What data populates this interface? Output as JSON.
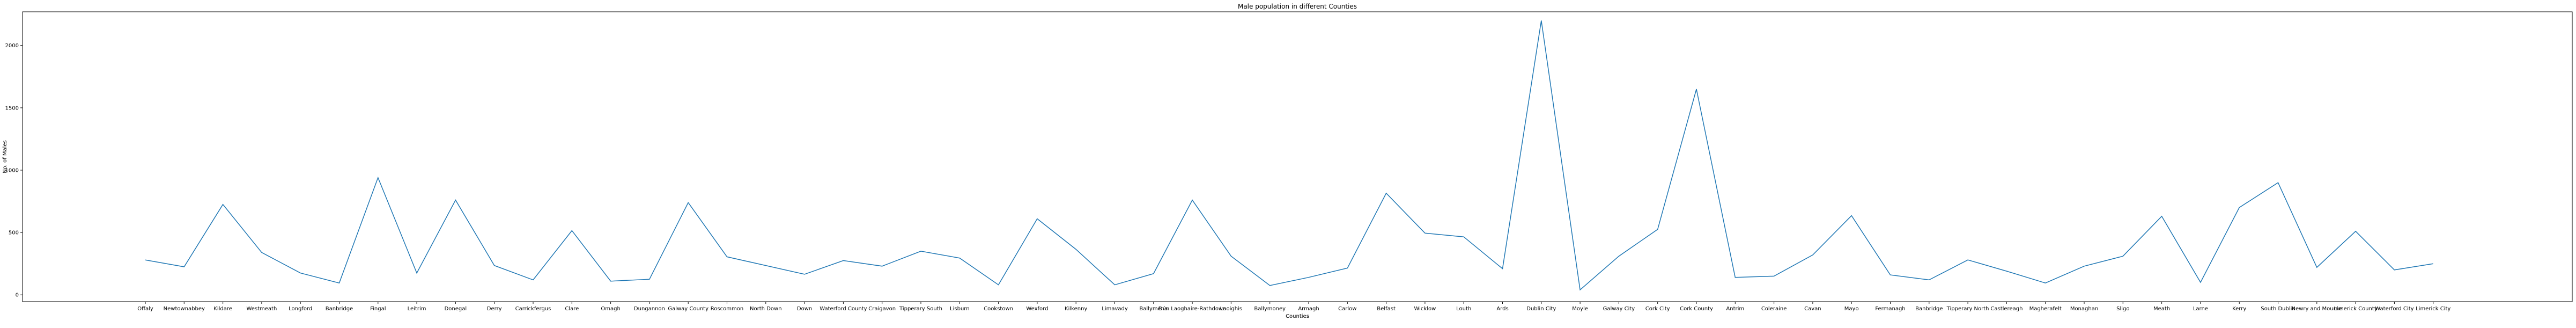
{
  "chart_data": {
    "type": "line",
    "title": "Male population in different Counties",
    "xlabel": "Counties",
    "ylabel": "No. of Males",
    "ylim": [
      -55,
      2270
    ],
    "yticks": [
      0,
      500,
      1000,
      1500,
      2000
    ],
    "grid": false,
    "line_color": "#1f77b4",
    "categories": [
      "Offaly",
      "Newtownabbey",
      "Kildare",
      "Westmeath",
      "Longford",
      "Banbridge",
      "Fingal",
      "Leitrim",
      "Donegal",
      "Derry",
      "Carrickfergus",
      "Clare",
      "Omagh",
      "Dungannon",
      "Galway County",
      "Roscommon",
      "North Down",
      "Down",
      "Waterford County",
      "Craigavon",
      "Tipperary South",
      "Lisburn",
      "Cookstown",
      "Wexford",
      "Kilkenny",
      "Limavady",
      "Ballymena",
      "Dún Laoghaire-Rathdown",
      "Laoighis",
      "Ballymoney",
      "Armagh",
      "Carlow",
      "Belfast",
      "Wicklow",
      "Louth",
      "Ards",
      "Dublin City",
      "Moyle",
      "Galway City",
      "Cork City",
      "Cork County",
      "Antrim",
      "Coleraine",
      "Cavan",
      "Mayo",
      "Fermanagh",
      "Banbridge",
      "Tipperary North",
      "Castlereagh",
      "Magherafelt",
      "Monaghan",
      "Sligo",
      "Meath",
      "Larne",
      "Kerry",
      "South Dublin",
      "Newry and Mourne",
      "Limerick County",
      "Waterford City",
      "Limerick City"
    ],
    "values": [
      280,
      225,
      725,
      340,
      175,
      95,
      940,
      175,
      760,
      235,
      120,
      515,
      110,
      125,
      740,
      305,
      235,
      165,
      275,
      230,
      350,
      295,
      80,
      610,
      365,
      80,
      170,
      760,
      310,
      75,
      140,
      215,
      815,
      495,
      465,
      210,
      2200,
      40,
      310,
      525,
      1650,
      140,
      150,
      320,
      635,
      160,
      120,
      280,
      190,
      95,
      230,
      310,
      630,
      100,
      700,
      900,
      220,
      510,
      200,
      250
    ]
  }
}
